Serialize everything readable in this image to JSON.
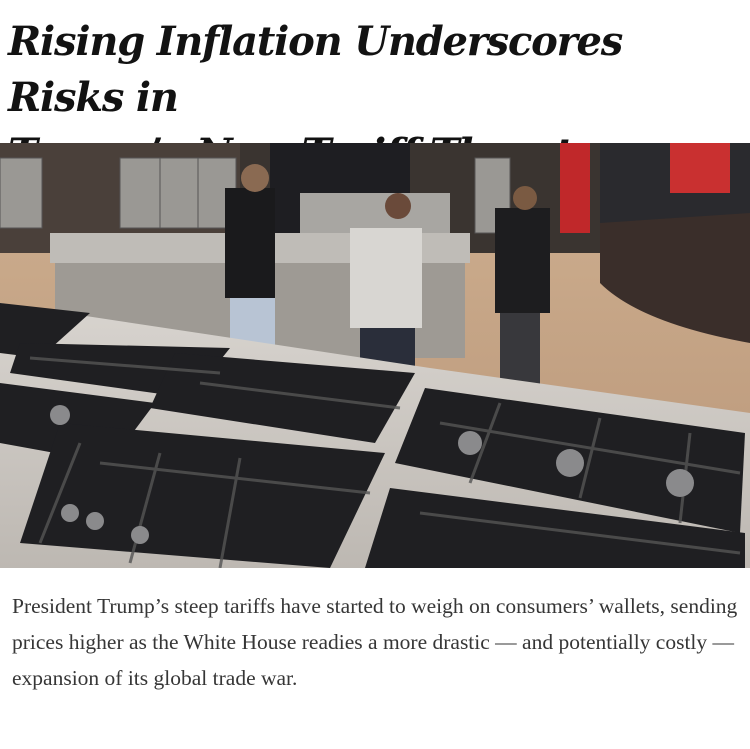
{
  "article": {
    "headline_line1": "Rising Inflation Underscores Risks in",
    "headline_line2": "Trump’s New Tariff Threats",
    "photo_alt": "Shoppers browsing gas cooktops and ranges in an appliance showroom",
    "caption": "President Trump’s steep tariffs have started to weigh on consumers’ wallets, sending prices higher as the White House readies a more drastic — and potentially costly — expansion of its global trade war."
  }
}
